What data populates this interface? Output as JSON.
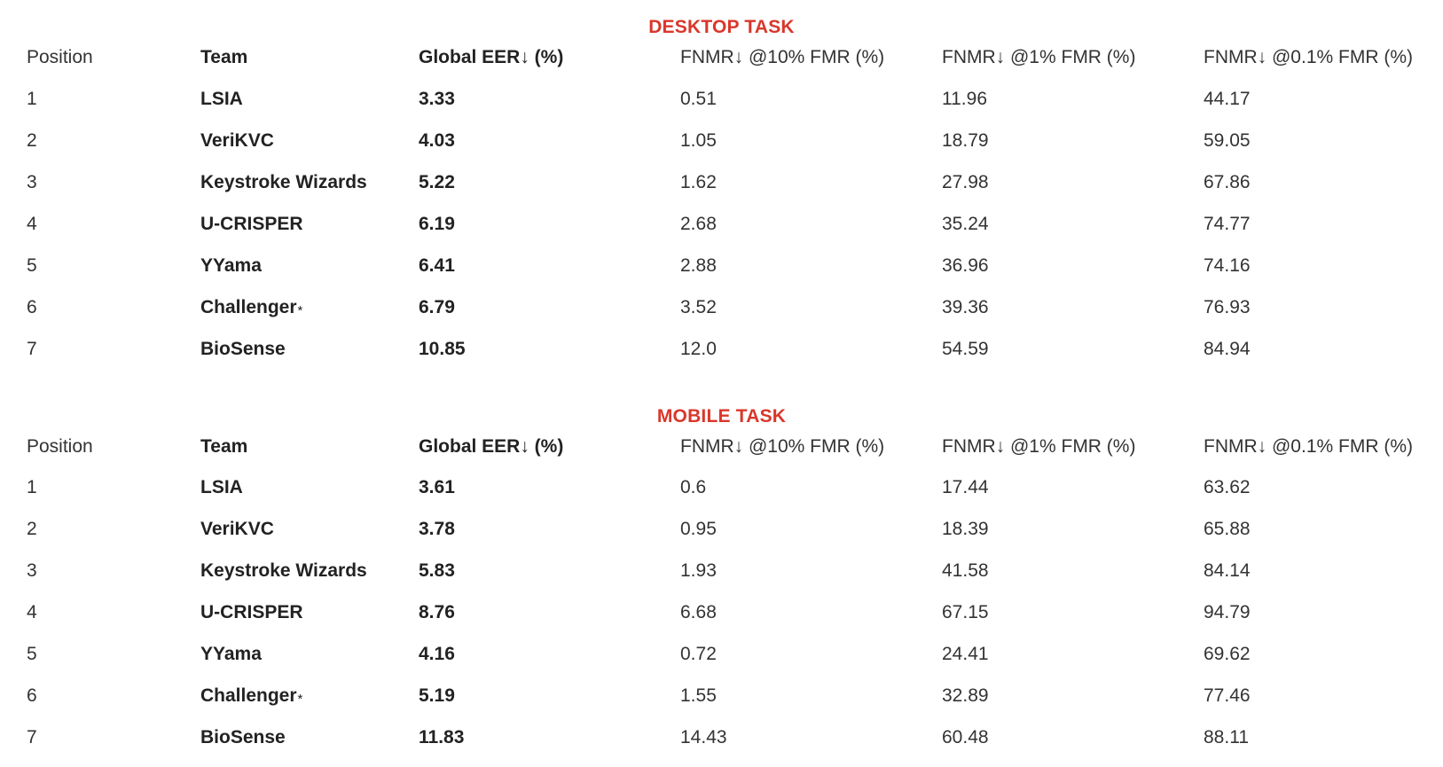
{
  "colors": {
    "section_title": "#d9372b",
    "text": "#333333"
  },
  "headers": {
    "position": "Position",
    "team": "Team",
    "eer": "Global EER↓ (%)",
    "fnmr10": "FNMR↓ @10% FMR (%)",
    "fnmr1": "FNMR↓ @1% FMR (%)",
    "fnmr01": "FNMR↓ @0.1% FMR (%)"
  },
  "sections": [
    {
      "title": "DESKTOP TASK",
      "rows": [
        {
          "position": "1",
          "team": "LSIA",
          "star": "",
          "eer": "3.33",
          "fnmr10": "0.51",
          "fnmr1": "11.96",
          "fnmr01": "44.17"
        },
        {
          "position": "2",
          "team": "VeriKVC",
          "star": "",
          "eer": "4.03",
          "fnmr10": "1.05",
          "fnmr1": "18.79",
          "fnmr01": "59.05"
        },
        {
          "position": "3",
          "team": "Keystroke Wizards",
          "star": "",
          "eer": "5.22",
          "fnmr10": "1.62",
          "fnmr1": "27.98",
          "fnmr01": "67.86"
        },
        {
          "position": "4",
          "team": "U-CRISPER",
          "star": "",
          "eer": "6.19",
          "fnmr10": "2.68",
          "fnmr1": "35.24",
          "fnmr01": "74.77"
        },
        {
          "position": "5",
          "team": "YYama",
          "star": "",
          "eer": "6.41",
          "fnmr10": "2.88",
          "fnmr1": "36.96",
          "fnmr01": "74.16"
        },
        {
          "position": "6",
          "team": "Challenger",
          "star": "*",
          "eer": "6.79",
          "fnmr10": "3.52",
          "fnmr1": "39.36",
          "fnmr01": "76.93"
        },
        {
          "position": "7",
          "team": "BioSense",
          "star": "",
          "eer": "10.85",
          "fnmr10": "12.0",
          "fnmr1": "54.59",
          "fnmr01": "84.94"
        }
      ]
    },
    {
      "title": "MOBILE TASK",
      "rows": [
        {
          "position": "1",
          "team": "LSIA",
          "star": "",
          "eer": "3.61",
          "fnmr10": "0.6",
          "fnmr1": "17.44",
          "fnmr01": "63.62"
        },
        {
          "position": "2",
          "team": "VeriKVC",
          "star": "",
          "eer": "3.78",
          "fnmr10": "0.95",
          "fnmr1": "18.39",
          "fnmr01": "65.88"
        },
        {
          "position": "3",
          "team": "Keystroke Wizards",
          "star": "",
          "eer": "5.83",
          "fnmr10": "1.93",
          "fnmr1": "41.58",
          "fnmr01": "84.14"
        },
        {
          "position": "4",
          "team": "U-CRISPER",
          "star": "",
          "eer": "8.76",
          "fnmr10": "6.68",
          "fnmr1": "67.15",
          "fnmr01": "94.79"
        },
        {
          "position": "5",
          "team": "YYama",
          "star": "",
          "eer": "4.16",
          "fnmr10": "0.72",
          "fnmr1": "24.41",
          "fnmr01": "69.62"
        },
        {
          "position": "6",
          "team": "Challenger",
          "star": "*",
          "eer": "5.19",
          "fnmr10": "1.55",
          "fnmr1": "32.89",
          "fnmr01": "77.46"
        },
        {
          "position": "7",
          "team": "BioSense",
          "star": "",
          "eer": "11.83",
          "fnmr10": "14.43",
          "fnmr1": "60.48",
          "fnmr01": "88.11"
        }
      ]
    }
  ]
}
